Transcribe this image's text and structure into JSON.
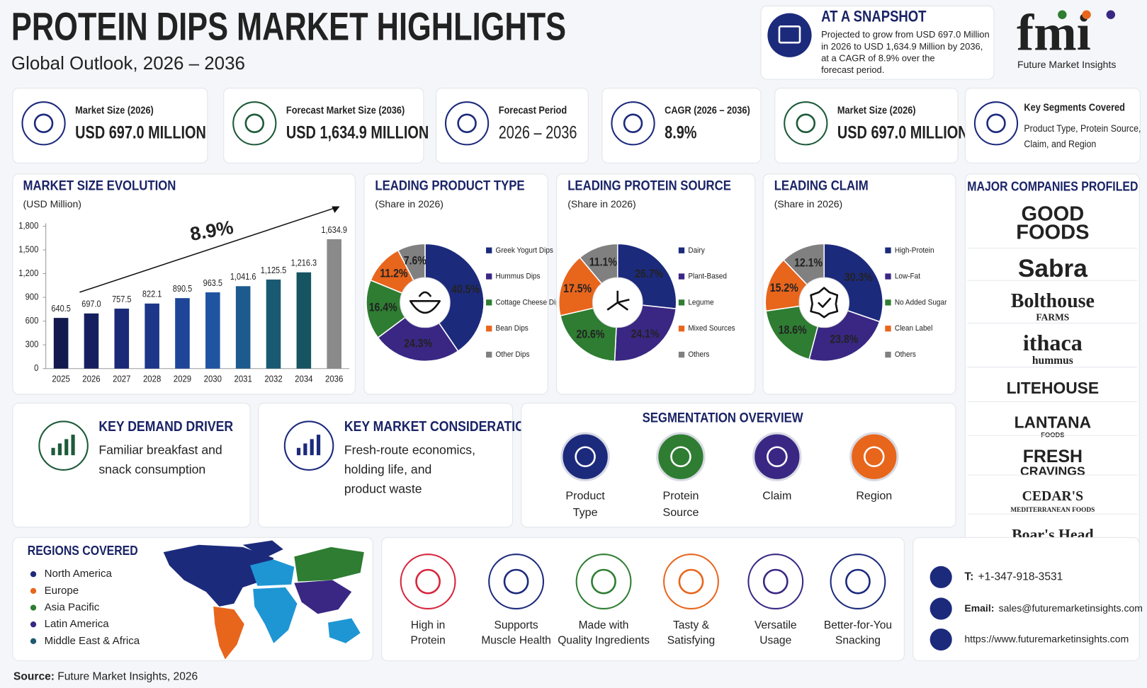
{
  "header": {
    "title": "PROTEIN DIPS MARKET HIGHLIGHTS",
    "subtitle": "Global Outlook, 2026 – 2036"
  },
  "snapshot": {
    "title": "AT A SNAPSHOT",
    "lines": [
      "Projected to grow from USD 697.0 Million",
      "in 2026 to USD 1,634.9 Million by 2036,",
      "at a CAGR of 8.9% over the",
      "forecast period."
    ]
  },
  "logo": {
    "mark": "fmi",
    "name": "Future Market Insights"
  },
  "kpis": [
    {
      "label": "Market Size (2026)",
      "value": "USD 697.0 MILLION"
    },
    {
      "label": "Forecast Market Size (2036)",
      "value": "USD 1,634.9 MILLION"
    },
    {
      "label": "Forecast Period",
      "value": "2026 – 2036"
    },
    {
      "label": "CAGR (2026 – 2036)",
      "value": "8.9%"
    },
    {
      "label": "Market Size (2026)",
      "value": "USD 697.0 MILLION"
    },
    {
      "label": "Key Segments Covered",
      "lines": [
        "Product Type, Protein Source,",
        "Claim, and Region"
      ]
    }
  ],
  "chart_data": [
    {
      "type": "bar",
      "title": "MARKET SIZE EVOLUTION",
      "subtitle": "(USD Million)",
      "annotation": "8.9%",
      "categories": [
        "2025",
        "2026",
        "2027",
        "2028",
        "2029",
        "2030",
        "2031",
        "2032",
        "2034",
        "2036"
      ],
      "values": [
        640.5,
        697.0,
        757.5,
        822.1,
        890.5,
        963.5,
        1041.6,
        1125.5,
        1216.3,
        1634.9
      ],
      "value_labels": [
        "640.5",
        "697.0",
        "757.5",
        "822.1",
        "890.5",
        "963.5",
        "1,041.6",
        "1,125.5",
        "1,216.3",
        "1,634.9"
      ],
      "colors": [
        "#121a4e",
        "#151f60",
        "#1a2a78",
        "#1c3689",
        "#1e4597",
        "#1f54a0",
        "#1d5b8e",
        "#195a72",
        "#175462",
        "#8a8a8a"
      ],
      "ylim": [
        0,
        1800
      ],
      "yticks": [
        0,
        300,
        600,
        900,
        {
          "value": 1200,
          "label": "1,200"
        },
        {
          "value": 1500,
          "label": "1,500"
        },
        {
          "value": 1800,
          "label": "1,800"
        }
      ]
    },
    {
      "type": "pie",
      "title": "LEADING PRODUCT TYPE",
      "subtitle": "(Share in 2026)",
      "categories": [
        "Greek Yogurt Dips",
        "Hummus Dips",
        "Cottage Cheese Dips",
        "Bean Dips",
        "Other Dips"
      ],
      "values": [
        40.5,
        24.3,
        16.4,
        11.2,
        7.6
      ],
      "value_labels": [
        "40.5%",
        "24.3%",
        "16.4%",
        "11.2%",
        "7.6%"
      ],
      "colors": [
        "#1c2a7c",
        "#3a2783",
        "#2e7d32",
        "#e8651c",
        "#808080"
      ]
    },
    {
      "type": "pie",
      "title": "LEADING PROTEIN SOURCE",
      "subtitle": "(Share in 2026)",
      "categories": [
        "Dairy",
        "Plant-Based",
        "Legume",
        "Mixed Sources",
        "Others"
      ],
      "values": [
        26.7,
        24.1,
        20.6,
        17.5,
        11.1
      ],
      "value_labels": [
        "26.7%",
        "24.1%",
        "20.6%",
        "17.5%",
        "11.1%"
      ],
      "colors": [
        "#1c2a7c",
        "#3a2783",
        "#2e7d32",
        "#e8651c",
        "#808080"
      ]
    },
    {
      "type": "pie",
      "title": "LEADING CLAIM",
      "subtitle": "(Share in 2026)",
      "categories": [
        "High-Protein",
        "Low-Fat",
        "No Added Sugar",
        "Clean Label",
        "Others"
      ],
      "values": [
        30.3,
        23.8,
        18.6,
        15.2,
        12.1
      ],
      "value_labels": [
        "30.3%",
        "23.8%",
        "18.6%",
        "15.2%",
        "12.1%"
      ],
      "colors": [
        "#1c2a7c",
        "#3a2783",
        "#2e7d32",
        "#e8651c",
        "#808080"
      ]
    }
  ],
  "driver": {
    "title": "KEY DEMAND DRIVER",
    "lines": [
      "Familiar breakfast and",
      "snack consumption"
    ]
  },
  "consideration": {
    "title": "KEY MARKET CONSIDERATION",
    "lines": [
      "Fresh-route economics,",
      "holding life, and",
      "product waste"
    ]
  },
  "segmentation": {
    "title": "SEGMENTATION OVERVIEW",
    "items": [
      [
        "Product",
        "Type"
      ],
      [
        "Protein",
        "Source"
      ],
      [
        "Claim"
      ],
      [
        "Region"
      ]
    ]
  },
  "companies": {
    "title": "MAJOR COMPANIES PROFILED",
    "items": [
      [
        "GOOD",
        "FOODS"
      ],
      [
        "Sabra"
      ],
      [
        "Bolthouse",
        "FARMS"
      ],
      [
        "ithaca",
        "hummus"
      ],
      [
        "LITEHOUSE"
      ],
      [
        "LANTANA",
        "FOODS"
      ],
      [
        "FRESH",
        "CRAVINGS"
      ],
      [
        "CEDAR'S",
        "MEDITERRANEAN FOODS"
      ],
      [
        "Boar's Head"
      ]
    ]
  },
  "regions": {
    "title": "REGIONS COVERED",
    "items": [
      {
        "name": "North America",
        "color": "#1c2a7c"
      },
      {
        "name": "Europe",
        "color": "#e8651c"
      },
      {
        "name": "Asia Pacific",
        "color": "#2e7d32"
      },
      {
        "name": "Latin America",
        "color": "#3a2783"
      },
      {
        "name": "Middle East & Africa",
        "color": "#1e5a72"
      }
    ]
  },
  "benefits": [
    {
      "lines": [
        "High in",
        "Protein"
      ],
      "color": "#d7263d"
    },
    {
      "lines": [
        "Supports",
        "Muscle Health"
      ],
      "color": "#1c2a7c"
    },
    {
      "lines": [
        "Made with",
        "Quality Ingredients"
      ],
      "color": "#2e7d32"
    },
    {
      "lines": [
        "Tasty &",
        "Satisfying"
      ],
      "color": "#e8651c"
    },
    {
      "lines": [
        "Versatile",
        "Usage"
      ],
      "color": "#3a2783"
    },
    {
      "lines": [
        "Better-for-You",
        "Snacking"
      ],
      "color": "#1c2a7c"
    }
  ],
  "contact": {
    "phone_label": "T:",
    "phone": "+1-347-918-3531",
    "email_label": "Email:",
    "email": "sales@futuremarketinsights.com",
    "url": "https://www.futuremarketinsights.com"
  },
  "source": {
    "label": "Source:",
    "text": " Future Market Insights, 2026"
  }
}
